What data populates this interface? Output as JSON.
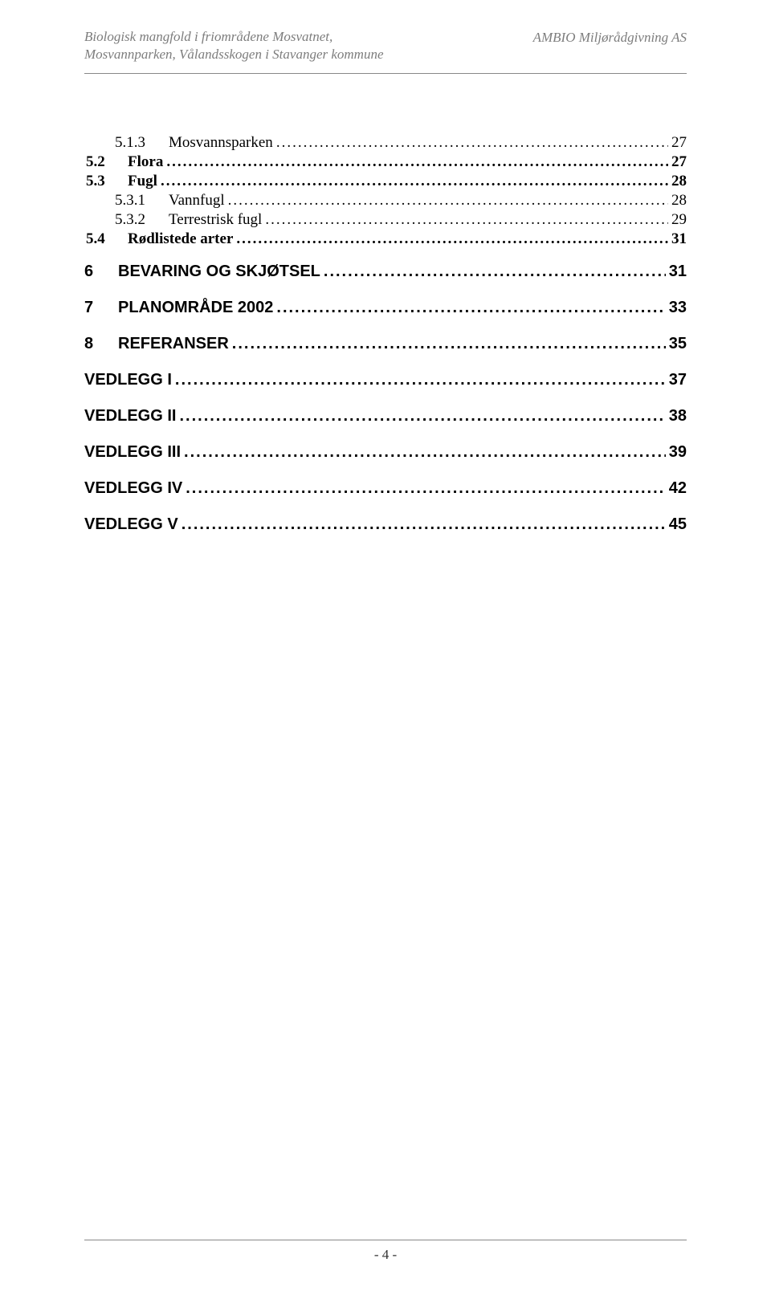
{
  "header": {
    "left_line1": "Biologisk mangfold i friområdene Mosvatnet,",
    "left_line2": "Mosvannparken, Vålandsskogen i Stavanger kommune",
    "right": "AMBIO Miljørådgivning AS"
  },
  "toc": {
    "entries": [
      {
        "num": "5.1.3",
        "title": "Mosvannsparken",
        "page": "27",
        "level": 2,
        "bold": false
      },
      {
        "num": "5.2",
        "title": "Flora",
        "page": "27",
        "level": 1,
        "bold": true
      },
      {
        "num": "5.3",
        "title": "Fugl",
        "page": "28",
        "level": 1,
        "bold": true
      },
      {
        "num": "5.3.1",
        "title": "Vannfugl",
        "page": "28",
        "level": 2,
        "bold": false
      },
      {
        "num": "5.3.2",
        "title": "Terrestrisk fugl",
        "page": "29",
        "level": 2,
        "bold": false
      },
      {
        "num": "5.4",
        "title": "Rødlistede arter",
        "page": "31",
        "level": 1,
        "bold": true
      }
    ],
    "chapters": [
      {
        "num": "6",
        "title": "BEVARING OG SKJØTSEL",
        "page": "31"
      },
      {
        "num": "7",
        "title": "PLANOMRÅDE 2002",
        "page": "33"
      },
      {
        "num": "8",
        "title": "REFERANSER",
        "page": "35"
      }
    ],
    "vedlegg": [
      {
        "title": "VEDLEGG I",
        "page": "37"
      },
      {
        "title": "VEDLEGG II",
        "page": "38"
      },
      {
        "title": "VEDLEGG III",
        "page": "39"
      },
      {
        "title": "VEDLEGG IV",
        "page": "42"
      },
      {
        "title": "VEDLEGG V",
        "page": "45"
      }
    ]
  },
  "dots": "...................................................................................................................................................................................",
  "footer": {
    "page": "- 4 -"
  }
}
